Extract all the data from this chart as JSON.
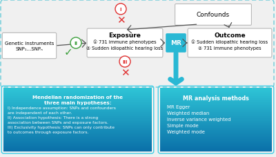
{
  "bg_color": "#f0f0f0",
  "teal_gradient_top": "#2ec4d6",
  "teal_gradient_bot": "#0a6fa8",
  "mr_box_color": "#29b8d4",
  "arrow_color": "#555555",
  "blue_arrow_color": "#29b8d4",
  "red_color": "#e03030",
  "green_color": "#3a9e3a",
  "dashed_color": "#5bc8d6",
  "white_box_edge": "#b8b8b8",
  "confounds_label": "Confounds",
  "genetic_label": "Genetic instruments\nSNP₁...SNPₙ",
  "exposure_title": "Exposure",
  "exposure_body": "① 731 immune phenotypes\n② Sudden idiopathic hearing loss",
  "mr_label": "MR",
  "outcome_title": "Outcome",
  "outcome_body": "① Sudden idiopathic hearing loss\n② 731 immune phenotypes",
  "left_title": "Mendelian randomization of the\nthree main hypotheses:",
  "left_body": "I) Independence assumption: SNPs and confounders\nare independent of each other.\nII) Association hypothesis: There is a strong\nassociation between SNPs and exposure factors.\nIII) Exclusivity hypothesis: SNPs can only contribute\nto outcomes through exposure factors.",
  "right_title": "MR analysis methods",
  "right_body": "MR Egger\nWeighted median\nInverse variance weighted\nSimple mode\nWeighted mode"
}
